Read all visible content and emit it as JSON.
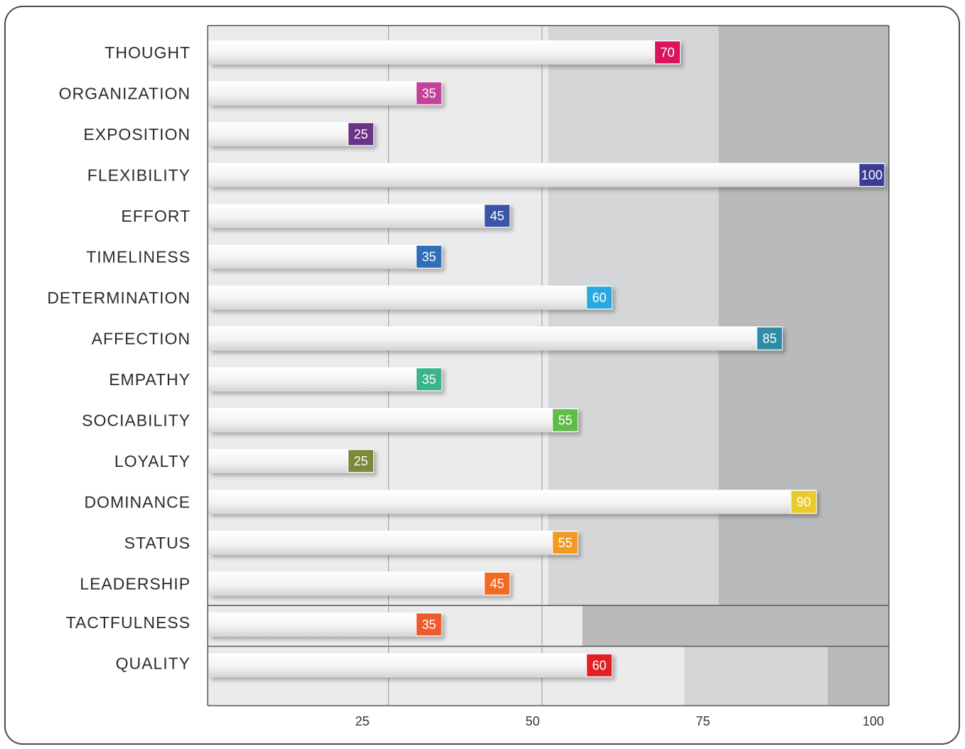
{
  "colors": {
    "band_light": "#ebebeb",
    "band_mid": "#d5d6d7",
    "band_dark": "#b9babc",
    "bar": "#f4f4f4",
    "axis": "#555555"
  },
  "chart_data": {
    "type": "bar",
    "orientation": "horizontal",
    "categories": [
      "THOUGHT",
      "ORGANIZATION",
      "EXPOSITION",
      "FLEXIBILITY",
      "EFFORT",
      "TIMELINESS",
      "DETERMINATION",
      "AFFECTION",
      "EMPATHY",
      "SOCIABILITY",
      "LOYALTY",
      "DOMINANCE",
      "STATUS",
      "LEADERSHIP",
      "TACTFULNESS",
      "QUALITY"
    ],
    "values": [
      70,
      35,
      25,
      100,
      45,
      35,
      60,
      85,
      35,
      55,
      25,
      90,
      55,
      45,
      35,
      60
    ],
    "value_labels": [
      "70",
      "35",
      "25",
      "100",
      "45",
      "35",
      "60",
      "85",
      "35",
      "55",
      "25",
      "90",
      "55",
      "45",
      "35",
      "60"
    ],
    "badge_colors": [
      "#d9145c",
      "#c2429c",
      "#6a3586",
      "#3b3b95",
      "#3a55a8",
      "#2f6fb8",
      "#29a8df",
      "#2f8ca8",
      "#3bb38d",
      "#5fbb4a",
      "#7a8a3a",
      "#e9cb2c",
      "#f39a25",
      "#f26b23",
      "#ef5a2a",
      "#e02026"
    ],
    "x_ticks": [
      25,
      50,
      75,
      100
    ],
    "x_tick_labels": [
      "25",
      "50",
      "75",
      "100"
    ],
    "xlim": [
      0,
      100
    ],
    "grid": true,
    "bands": [
      {
        "rows": [
          0,
          13
        ],
        "ranges": [
          [
            0,
            50,
            "#ebebeb"
          ],
          [
            50,
            75,
            "#d5d6d7"
          ],
          [
            75,
            100,
            "#b9babc"
          ]
        ]
      },
      {
        "rows": [
          14,
          14
        ],
        "ranges": [
          [
            0,
            55,
            "#ebebeb"
          ],
          [
            55,
            100,
            "#b9babc"
          ]
        ]
      },
      {
        "rows": [
          15,
          15
        ],
        "ranges": [
          [
            0,
            70,
            "#ebebeb"
          ],
          [
            70,
            91,
            "#d5d6d7"
          ],
          [
            91,
            100,
            "#b9babc"
          ]
        ]
      }
    ],
    "title": "",
    "xlabel": "",
    "ylabel": ""
  }
}
